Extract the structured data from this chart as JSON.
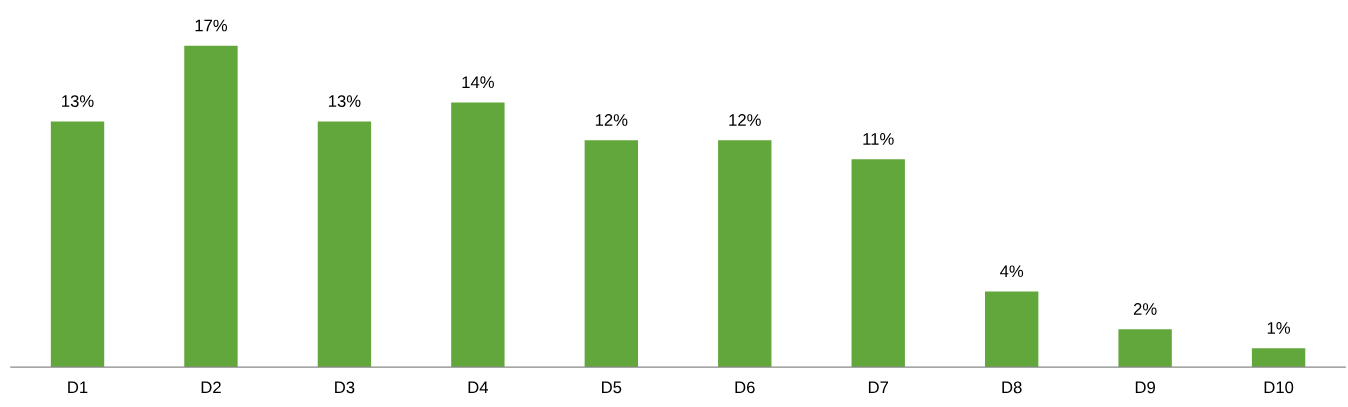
{
  "chart_data": {
    "type": "bar",
    "categories": [
      "D1",
      "D2",
      "D3",
      "D4",
      "D5",
      "D6",
      "D7",
      "D8",
      "D9",
      "D10"
    ],
    "values": [
      13,
      17,
      13,
      14,
      12,
      12,
      11,
      4,
      2,
      1
    ],
    "color": "#62a73b",
    "value_labels": [
      "13%",
      "17%",
      "13%",
      "14%",
      "12%",
      "12%",
      "11%",
      "4%",
      "2%",
      "1%"
    ],
    "grid": false,
    "legend": false
  }
}
